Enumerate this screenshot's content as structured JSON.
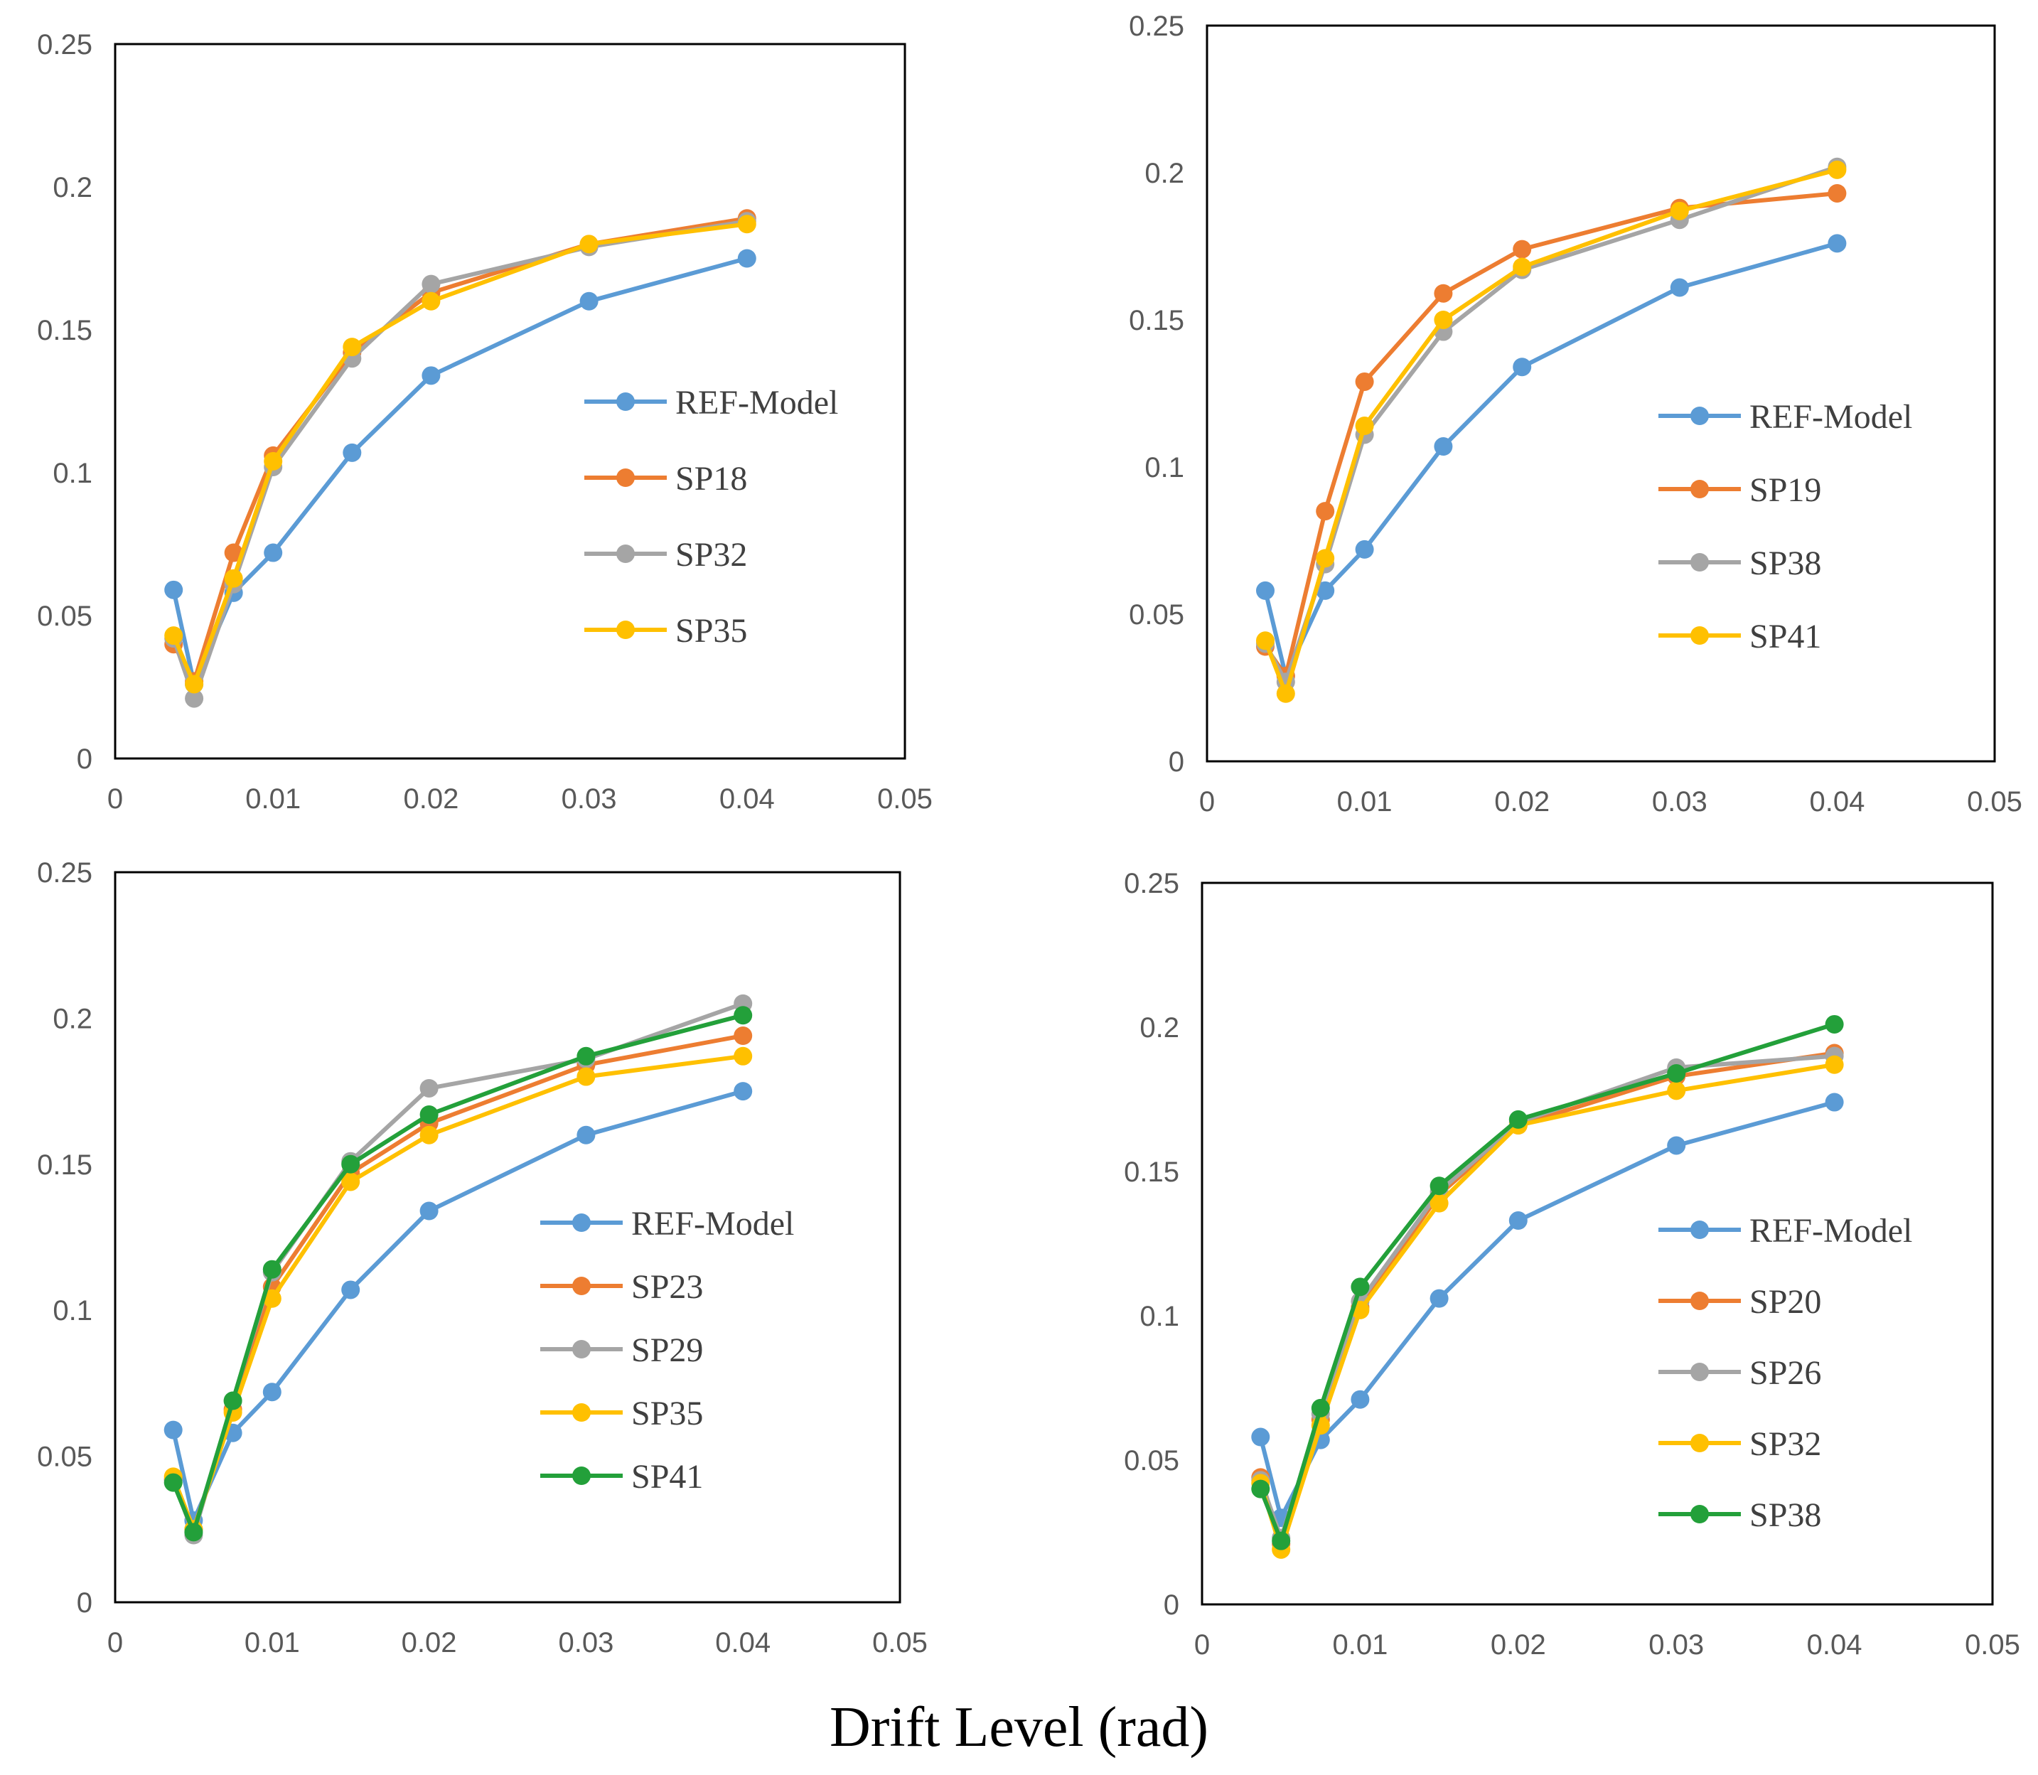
{
  "colors": {
    "REF-Model": "#5B9BD5",
    "orange": "#ED7D31",
    "gray": "#A5A5A5",
    "yellow": "#FFC000",
    "green": "#23A03A"
  },
  "figure": {
    "xlabel": "Drift Level (rad)"
  },
  "chart_data": [
    {
      "type": "line",
      "panel": "top-left",
      "xlim": [
        0,
        0.05
      ],
      "ylim": [
        0,
        0.25
      ],
      "xticks": [
        "0",
        "0.01",
        "0.02",
        "0.03",
        "0.04",
        "0.05"
      ],
      "yticks": [
        "0",
        "0.05",
        "0.1",
        "0.15",
        "0.2",
        "0.25"
      ],
      "legend_position": "right",
      "series": [
        {
          "name": "REF-Model",
          "color_key": "REF-Model",
          "x": [
            0.0037,
            0.005,
            0.0075,
            0.01,
            0.015,
            0.02,
            0.03,
            0.04
          ],
          "y": [
            0.059,
            0.026,
            0.058,
            0.072,
            0.107,
            0.134,
            0.16,
            0.175
          ]
        },
        {
          "name": "SP18",
          "color_key": "orange",
          "x": [
            0.0037,
            0.005,
            0.0075,
            0.01,
            0.015,
            0.02,
            0.03,
            0.04
          ],
          "y": [
            0.04,
            0.027,
            0.072,
            0.106,
            0.142,
            0.163,
            0.18,
            0.189
          ]
        },
        {
          "name": "SP32",
          "color_key": "gray",
          "x": [
            0.0037,
            0.005,
            0.0075,
            0.01,
            0.015,
            0.02,
            0.03,
            0.04
          ],
          "y": [
            0.042,
            0.021,
            0.061,
            0.102,
            0.14,
            0.166,
            0.179,
            0.188
          ]
        },
        {
          "name": "SP35",
          "color_key": "yellow",
          "x": [
            0.0037,
            0.005,
            0.0075,
            0.01,
            0.015,
            0.02,
            0.03,
            0.04
          ],
          "y": [
            0.043,
            0.026,
            0.063,
            0.104,
            0.144,
            0.16,
            0.18,
            0.187
          ]
        }
      ]
    },
    {
      "type": "line",
      "panel": "top-right",
      "xlim": [
        0,
        0.05
      ],
      "ylim": [
        0,
        0.25
      ],
      "xticks": [
        "0",
        "0.01",
        "0.02",
        "0.03",
        "0.04",
        "0.05"
      ],
      "yticks": [
        "0",
        "0.05",
        "0.1",
        "0.15",
        "0.2",
        "0.25"
      ],
      "legend_position": "right",
      "series": [
        {
          "name": "REF-Model",
          "color_key": "REF-Model",
          "x": [
            0.0037,
            0.005,
            0.0075,
            0.01,
            0.015,
            0.02,
            0.03,
            0.04
          ],
          "y": [
            0.058,
            0.029,
            0.058,
            0.072,
            0.107,
            0.134,
            0.161,
            0.176
          ]
        },
        {
          "name": "SP19",
          "color_key": "orange",
          "x": [
            0.0037,
            0.005,
            0.0075,
            0.01,
            0.015,
            0.02,
            0.03,
            0.04
          ],
          "y": [
            0.039,
            0.029,
            0.085,
            0.129,
            0.159,
            0.174,
            0.188,
            0.193
          ]
        },
        {
          "name": "SP38",
          "color_key": "gray",
          "x": [
            0.0037,
            0.005,
            0.0075,
            0.01,
            0.015,
            0.02,
            0.03,
            0.04
          ],
          "y": [
            0.04,
            0.027,
            0.067,
            0.111,
            0.146,
            0.167,
            0.184,
            0.202
          ]
        },
        {
          "name": "SP41",
          "color_key": "yellow",
          "x": [
            0.0037,
            0.005,
            0.0075,
            0.01,
            0.015,
            0.02,
            0.03,
            0.04
          ],
          "y": [
            0.041,
            0.023,
            0.069,
            0.114,
            0.15,
            0.168,
            0.187,
            0.201
          ]
        }
      ]
    },
    {
      "type": "line",
      "panel": "bottom-left",
      "xlim": [
        0,
        0.05
      ],
      "ylim": [
        0,
        0.25
      ],
      "xticks": [
        "0",
        "0.01",
        "0.02",
        "0.03",
        "0.04",
        "0.05"
      ],
      "yticks": [
        "0",
        "0.05",
        "0.1",
        "0.15",
        "0.2",
        "0.25"
      ],
      "legend_position": "right",
      "series": [
        {
          "name": "REF-Model",
          "color_key": "REF-Model",
          "x": [
            0.0037,
            0.005,
            0.0075,
            0.01,
            0.015,
            0.02,
            0.03,
            0.04
          ],
          "y": [
            0.059,
            0.028,
            0.058,
            0.072,
            0.107,
            0.134,
            0.16,
            0.175
          ]
        },
        {
          "name": "SP23",
          "color_key": "orange",
          "x": [
            0.0037,
            0.005,
            0.0075,
            0.01,
            0.015,
            0.02,
            0.03,
            0.04
          ],
          "y": [
            0.042,
            0.025,
            0.066,
            0.108,
            0.147,
            0.164,
            0.184,
            0.194
          ]
        },
        {
          "name": "SP29",
          "color_key": "gray",
          "x": [
            0.0037,
            0.005,
            0.0075,
            0.01,
            0.015,
            0.02,
            0.03,
            0.04
          ],
          "y": [
            0.042,
            0.023,
            0.069,
            0.113,
            0.151,
            0.176,
            0.186,
            0.205
          ]
        },
        {
          "name": "SP35",
          "color_key": "yellow",
          "x": [
            0.0037,
            0.005,
            0.0075,
            0.01,
            0.015,
            0.02,
            0.03,
            0.04
          ],
          "y": [
            0.043,
            0.025,
            0.065,
            0.104,
            0.144,
            0.16,
            0.18,
            0.187
          ]
        },
        {
          "name": "SP41",
          "color_key": "green",
          "x": [
            0.0037,
            0.005,
            0.0075,
            0.01,
            0.015,
            0.02,
            0.03,
            0.04
          ],
          "y": [
            0.041,
            0.024,
            0.069,
            0.114,
            0.15,
            0.167,
            0.187,
            0.201
          ]
        }
      ]
    },
    {
      "type": "line",
      "panel": "bottom-right",
      "xlim": [
        0,
        0.05
      ],
      "ylim": [
        0,
        0.25
      ],
      "xticks": [
        "0",
        "0.01",
        "0.02",
        "0.03",
        "0.04",
        "0.05"
      ],
      "yticks": [
        "0",
        "0.05",
        "0.1",
        "0.15",
        "0.2",
        "0.25"
      ],
      "legend_position": "right",
      "series": [
        {
          "name": "REF-Model",
          "color_key": "REF-Model",
          "x": [
            0.0037,
            0.005,
            0.0075,
            0.01,
            0.015,
            0.02,
            0.03,
            0.04
          ],
          "y": [
            0.058,
            0.03,
            0.057,
            0.071,
            0.106,
            0.133,
            0.159,
            0.174
          ]
        },
        {
          "name": "SP20",
          "color_key": "orange",
          "x": [
            0.0037,
            0.005,
            0.0075,
            0.01,
            0.015,
            0.02,
            0.03,
            0.04
          ],
          "y": [
            0.044,
            0.021,
            0.064,
            0.103,
            0.142,
            0.166,
            0.183,
            0.191
          ]
        },
        {
          "name": "SP26",
          "color_key": "gray",
          "x": [
            0.0037,
            0.005,
            0.0075,
            0.01,
            0.015,
            0.02,
            0.03,
            0.04
          ],
          "y": [
            0.043,
            0.023,
            0.066,
            0.105,
            0.143,
            0.167,
            0.186,
            0.19
          ]
        },
        {
          "name": "SP32",
          "color_key": "yellow",
          "x": [
            0.0037,
            0.005,
            0.0075,
            0.01,
            0.015,
            0.02,
            0.03,
            0.04
          ],
          "y": [
            0.042,
            0.019,
            0.062,
            0.102,
            0.139,
            0.166,
            0.178,
            0.187
          ]
        },
        {
          "name": "SP38",
          "color_key": "green",
          "x": [
            0.0037,
            0.005,
            0.0075,
            0.01,
            0.015,
            0.02,
            0.03,
            0.04
          ],
          "y": [
            0.04,
            0.022,
            0.068,
            0.11,
            0.145,
            0.168,
            0.184,
            0.201
          ]
        }
      ]
    }
  ]
}
